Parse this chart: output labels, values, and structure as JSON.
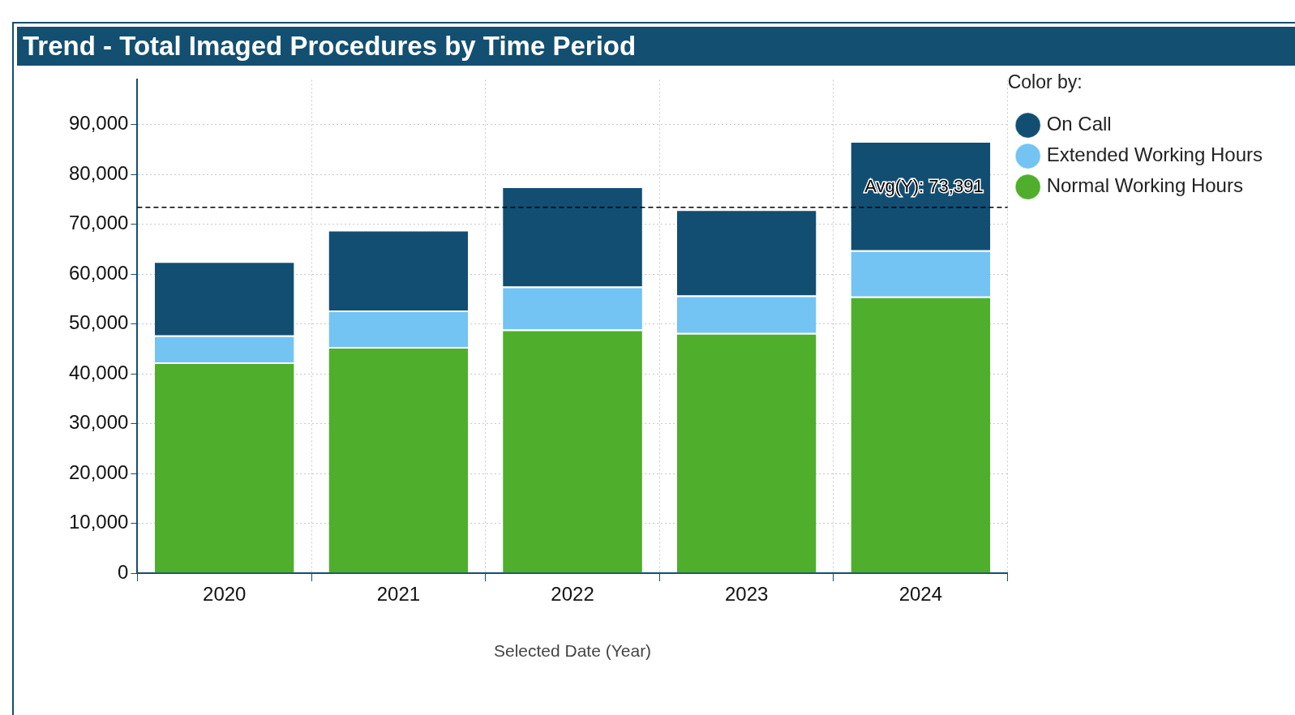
{
  "chart_data": {
    "type": "bar",
    "title": "Trend - Total Imaged Procedures by Time Period",
    "xlabel": "Selected Date (Year)",
    "legend_title": "Color by:",
    "categories": [
      "2020",
      "2021",
      "2022",
      "2023",
      "2024"
    ],
    "stacked": true,
    "series": [
      {
        "name": "Normal Working Hours",
        "color": "#4fae2b",
        "values": [
          42300,
          45400,
          48900,
          48200,
          55500
        ]
      },
      {
        "name": "Extended Working Hours",
        "color": "#73c3f3",
        "values": [
          5400,
          7300,
          8600,
          7500,
          9300
        ]
      },
      {
        "name": "On Call",
        "color": "#124e72",
        "values": [
          14900,
          16200,
          20100,
          17300,
          21900
        ]
      }
    ],
    "ylim": [
      0,
      99000
    ],
    "yticks": [
      0,
      {
        "value": 10000,
        "label": "10,000"
      },
      {
        "value": 20000,
        "label": "20,000"
      },
      {
        "value": 30000,
        "label": "30,000"
      },
      {
        "value": 40000,
        "label": "40,000"
      },
      {
        "value": 50000,
        "label": "50,000"
      },
      {
        "value": 60000,
        "label": "60,000"
      },
      {
        "value": 70000,
        "label": "70,000"
      },
      {
        "value": 80000,
        "label": "80,000"
      },
      {
        "value": 90000,
        "label": "90,000"
      }
    ],
    "grid": true,
    "legend": "top right",
    "ref_lines": [
      {
        "axis": "y",
        "value": 73391,
        "label": "Avg(Y): 73,391",
        "color": "#000000",
        "line_style": "dashed"
      }
    ]
  }
}
